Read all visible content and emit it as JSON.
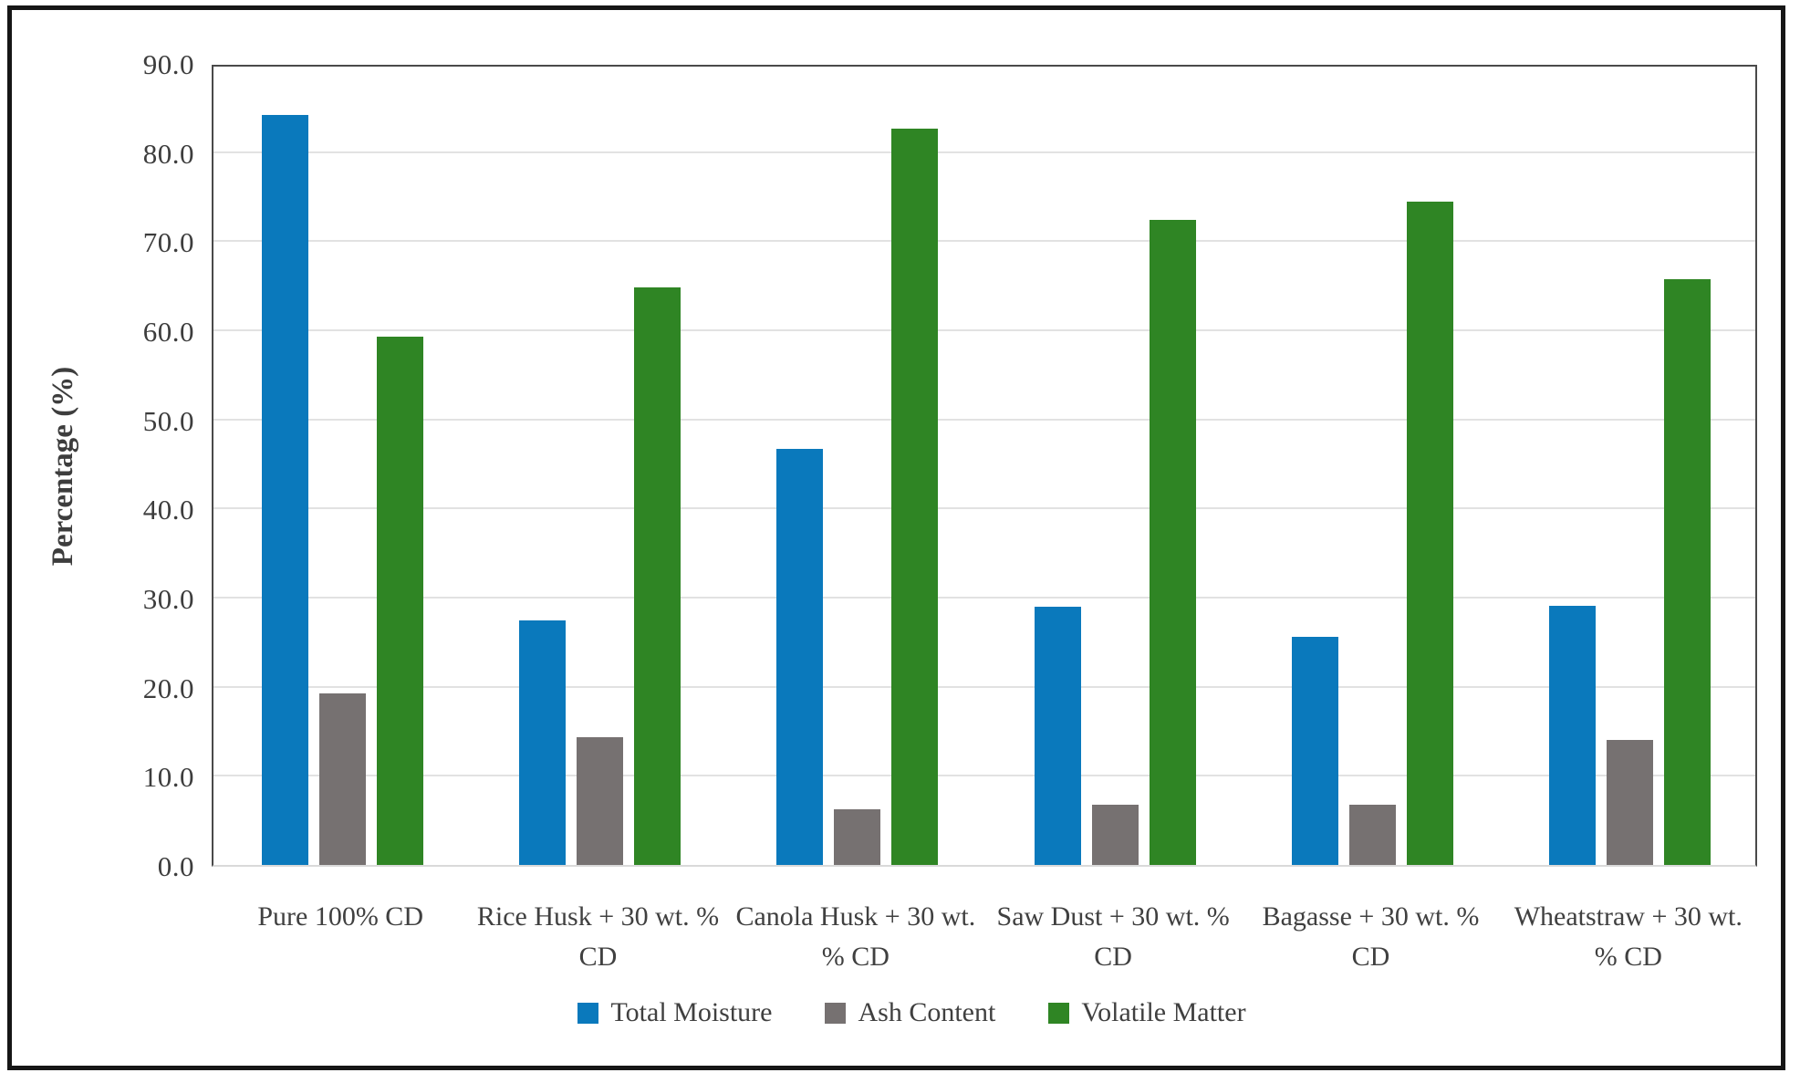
{
  "chart_data": {
    "type": "bar",
    "title": "",
    "xlabel": "",
    "ylabel": "Percentage (%)",
    "ylim": [
      0,
      90
    ],
    "ytick_step": 10,
    "ytick_decimals": 1,
    "grid": true,
    "legend_position": "bottom-center",
    "categories": [
      "Pure 100% CD",
      "Rice Husk + 30 wt. % CD",
      "Canola Husk + 30 wt. % CD",
      "Saw Dust + 30 wt. % CD",
      "Bagasse + 30 wt. % CD",
      "Wheatstraw + 30 wt. % CD"
    ],
    "series": [
      {
        "name": "Total Moisture",
        "color": "#0a79bc",
        "values": [
          84.2,
          27.4,
          46.7,
          29.0,
          25.6,
          29.1
        ]
      },
      {
        "name": "Ash Content",
        "color": "#767171",
        "values": [
          19.2,
          14.3,
          6.2,
          6.8,
          6.8,
          14.0
        ]
      },
      {
        "name": "Volatile Matter",
        "color": "#2f8524",
        "values": [
          59.3,
          64.8,
          82.6,
          72.4,
          74.4,
          65.7
        ]
      }
    ]
  },
  "colors": {
    "background": "#ffffff",
    "figure_border": "#161616",
    "axis_line": "#4a4a4a",
    "gridline": "#e2e2e2",
    "tick_text": "#3d3d3d",
    "label_text": "#404040"
  }
}
